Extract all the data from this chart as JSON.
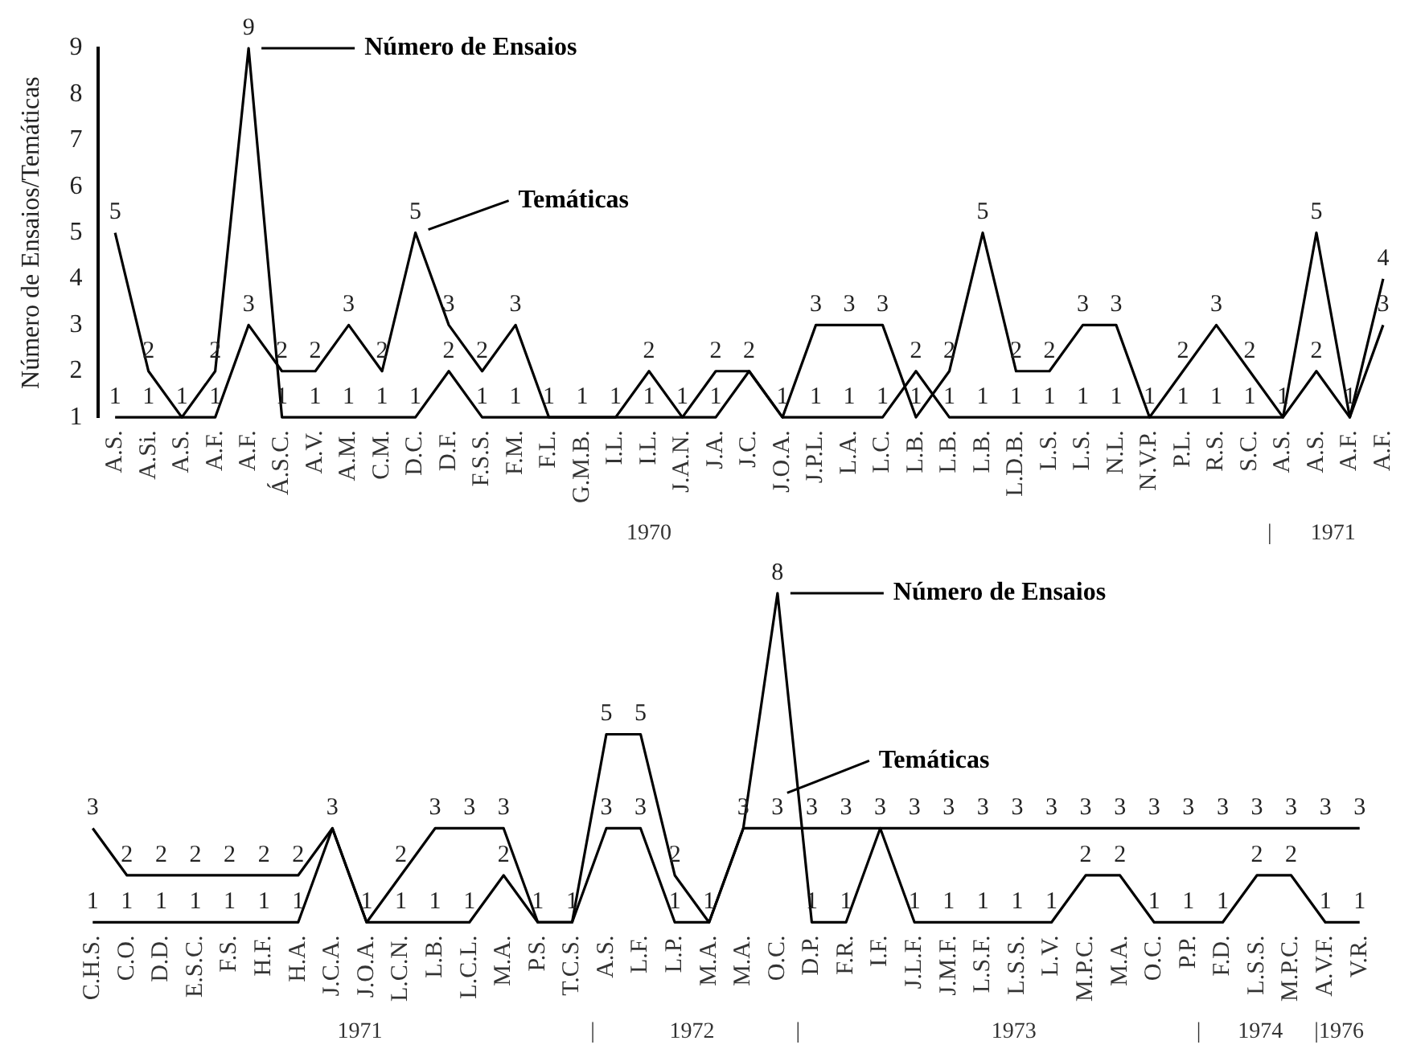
{
  "chart_data": [
    {
      "type": "line",
      "ylabel": "Número de Ensaios/Temáticas",
      "categories": [
        "A.S.",
        "A.Si.",
        "A.S.",
        "A.F.",
        "A.F.",
        "Á.S.C.",
        "A.V.",
        "A.M.",
        "C.M.",
        "D.C.",
        "D.F.",
        "F.S.S.",
        "F.M.",
        "F.L.",
        "G.M.B.",
        "I.L.",
        "I.L.",
        "J.A.N.",
        "J.A.",
        "J.C.",
        "J.O.A.",
        "J.P.L.",
        "L.A.",
        "L.C.",
        "L.B.",
        "L.B.",
        "L.B.",
        "L.D.B.",
        "L.S.",
        "L.S.",
        "N.L.",
        "N.V.P.",
        "P.L.",
        "R.S.",
        "S.C.",
        "A.S.",
        "A.S.",
        "A.F.",
        "A.F."
      ],
      "series": [
        {
          "name": "Número de Ensaios",
          "color": "#000000",
          "values": [
            5,
            2,
            1,
            2,
            9,
            1,
            1,
            1,
            1,
            1,
            2,
            1,
            1,
            1,
            1,
            1,
            2,
            1,
            1,
            2,
            1,
            1,
            1,
            1,
            2,
            1,
            1,
            1,
            1,
            1,
            1,
            1,
            1,
            1,
            1,
            1,
            2,
            1,
            3
          ],
          "value_labels": [
            "5",
            "2",
            "1",
            "2",
            "9",
            "1",
            "1",
            "1",
            "1",
            "1",
            "2",
            "1",
            "1",
            "1",
            "1",
            "1",
            "2",
            "1",
            "1",
            "2",
            "1",
            "1",
            "1",
            "1",
            "2",
            "1",
            "1",
            "1",
            "1",
            "1",
            "1",
            "1",
            "1",
            "1",
            "1",
            "1",
            "2",
            "1",
            "3"
          ]
        },
        {
          "name": "Temáticas",
          "color": "#000000",
          "values": [
            1,
            1,
            1,
            1,
            3,
            2,
            2,
            3,
            2,
            5,
            3,
            2,
            3,
            1,
            1,
            1,
            1,
            1,
            2,
            2,
            1,
            3,
            3,
            3,
            1,
            2,
            5,
            2,
            2,
            3,
            3,
            1,
            2,
            3,
            2,
            1,
            5,
            1,
            4
          ],
          "value_labels": [
            "1",
            "1",
            null,
            "1",
            "3",
            "2",
            "2",
            "3",
            "2",
            "5",
            "3",
            "2",
            "3",
            null,
            null,
            null,
            "1",
            null,
            "2",
            null,
            null,
            "3",
            "3",
            "3",
            "1",
            "2",
            "5",
            "2",
            "2",
            "3",
            "3",
            null,
            "2",
            "3",
            "2",
            null,
            "5",
            null,
            "4"
          ]
        }
      ],
      "ylim": [
        1,
        9
      ],
      "yticks": [
        1,
        2,
        3,
        4,
        5,
        6,
        7,
        8,
        9
      ],
      "legend": "top",
      "marker": "none",
      "line_style": "solid",
      "annotations": [
        "1970",
        "|",
        "1971"
      ]
    },
    {
      "type": "line",
      "categories": [
        "C.H.S.",
        "C.O.",
        "D.D.",
        "E.S.C.",
        "F.S.",
        "H.F.",
        "H.A.",
        "J.C.A.",
        "J.O.A.",
        "L.C.N.",
        "L.B.",
        "L.C.L.",
        "M.A.",
        "P.S.",
        "T.C.S.",
        "A.S.",
        "L.F.",
        "L.P.",
        "M.A.",
        "M.A.",
        "O.C.",
        "D.P.",
        "F.R.",
        "I.F.",
        "J.L.F.",
        "J.M.F.",
        "L.S.F.",
        "L.S.S.",
        "L.V.",
        "M.P.C.",
        "M.A.",
        "O.C.",
        "P.P.",
        "F.D.",
        "L.S.S.",
        "M.P.C.",
        "A.V.F.",
        "V.R."
      ],
      "series": [
        {
          "name": "Número de Ensaios",
          "color": "#000000",
          "values": [
            1,
            1,
            1,
            1,
            1,
            1,
            1,
            3,
            1,
            1,
            1,
            1,
            2,
            1,
            1,
            5,
            5,
            2,
            1,
            3,
            8,
            1,
            1,
            3,
            1,
            1,
            1,
            1,
            1,
            2,
            2,
            1,
            1,
            1,
            2,
            2,
            1,
            1
          ],
          "value_labels": [
            "1",
            "1",
            "1",
            "1",
            "1",
            "1",
            "1",
            "3",
            "1",
            "1",
            "1",
            "1",
            "2",
            "1",
            "1",
            "5",
            "5",
            "2",
            "1",
            "3",
            "8",
            "1",
            "1",
            "3",
            "1",
            "1",
            "1",
            "1",
            "1",
            "2",
            "2",
            "1",
            "1",
            "1",
            "2",
            "2",
            "1",
            "1"
          ]
        },
        {
          "name": "Temáticas",
          "color": "#000000",
          "values": [
            3,
            2,
            2,
            2,
            2,
            2,
            2,
            3,
            1,
            2,
            3,
            3,
            3,
            1,
            1,
            3,
            3,
            1,
            1,
            3,
            3,
            3,
            3,
            3,
            3,
            3,
            3,
            3,
            3,
            3,
            3,
            3,
            3,
            3,
            3,
            3,
            3,
            3
          ],
          "value_labels": [
            "3",
            "2",
            "2",
            "2",
            "2",
            "2",
            "2",
            null,
            null,
            "2",
            "3",
            "3",
            "3",
            null,
            null,
            "3",
            "3",
            "1",
            null,
            null,
            "3",
            "3",
            "3",
            null,
            "3",
            "3",
            "3",
            "3",
            "3",
            "3",
            "3",
            "3",
            "3",
            "3",
            "3",
            "3",
            "3",
            "3"
          ]
        }
      ],
      "tick_labels": "x",
      "legend": "top",
      "marker": "none",
      "line_style": "solid",
      "annotations": [
        "1971",
        "|",
        "1972",
        "|",
        "1973",
        "|",
        "1974",
        "|1976"
      ]
    }
  ]
}
